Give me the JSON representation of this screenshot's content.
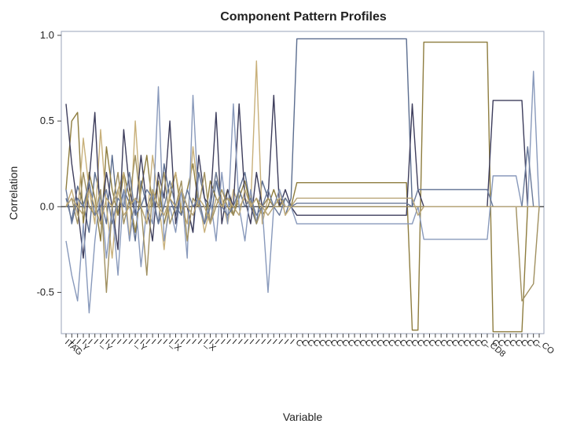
{
  "chart_data": {
    "type": "line",
    "title": "Component Pattern Profiles",
    "xlabel": "Variable",
    "ylabel": "Correlation",
    "ylim": [
      -0.75,
      1.0
    ],
    "yticks": [
      1.0,
      0.5,
      0.0,
      -0.5
    ],
    "ytick_labels": [
      "1.0",
      "0.5",
      "0.0",
      "-0.5"
    ],
    "grid": false,
    "legend": "none",
    "n_variables": 83,
    "x_tick_labels": [
      "ITAG",
      "I",
      "I_Y",
      "I",
      "I",
      "I",
      "I_Y",
      "I",
      "I",
      "I",
      "I",
      "I",
      "I_Y",
      "I",
      "I",
      "I",
      "I",
      "I",
      "I_X",
      "I",
      "I",
      "I",
      "I",
      "I",
      "I_X",
      "I",
      "I",
      "I",
      "I",
      "I",
      "I",
      "I",
      "I",
      "I",
      "I",
      "I",
      "I",
      "I",
      "I",
      "I",
      "C",
      "C",
      "C",
      "C",
      "C",
      "C",
      "C",
      "C",
      "C",
      "C",
      "C",
      "C",
      "C",
      "C",
      "C",
      "C",
      "C",
      "C",
      "C",
      "C",
      "C",
      "C",
      "C",
      "C",
      "C",
      "C",
      "C",
      "C",
      "C",
      "C",
      "C",
      "C",
      "C",
      "_CD8",
      "C",
      "C",
      "C",
      "C",
      "C",
      "C",
      "C",
      "C",
      "_CO"
    ],
    "series": [
      {
        "color": "#5b6d8f",
        "values": [
          0.05,
          -0.08,
          0.12,
          0.02,
          -0.15,
          0.2,
          0.05,
          -0.1,
          0.3,
          -0.05,
          0.1,
          0.02,
          -0.2,
          0.15,
          0.0,
          0.08,
          -0.1,
          0.25,
          0.05,
          -0.05,
          0.1,
          0.0,
          -0.15,
          0.2,
          0.05,
          -0.1,
          0.15,
          0.0,
          0.05,
          -0.05,
          0.1,
          0.2,
          0.0,
          -0.1,
          0.15,
          0.05,
          0.0,
          0.1,
          -0.05,
          0.05,
          0.98,
          0.98,
          0.98,
          0.98,
          0.98,
          0.98,
          0.98,
          0.98,
          0.98,
          0.98,
          0.98,
          0.98,
          0.98,
          0.98,
          0.98,
          0.98,
          0.98,
          0.98,
          0.98,
          0.98,
          0.0,
          0.0,
          0.0,
          0.0,
          0.0,
          0.0,
          0.0,
          0.0,
          0.0,
          0.0,
          0.0,
          0.0,
          0.0,
          0.0,
          0.0,
          0.0,
          0.0,
          0.0,
          0.0,
          0.0,
          0.0,
          0.0,
          0.0
        ]
      },
      {
        "color": "#8e7d3f",
        "values": [
          0.1,
          0.5,
          0.55,
          -0.1,
          0.2,
          0.05,
          -0.2,
          0.35,
          0.1,
          -0.05,
          0.2,
          0.05,
          -0.15,
          0.1,
          0.3,
          0.0,
          0.15,
          -0.1,
          0.05,
          0.2,
          -0.05,
          0.1,
          0.25,
          0.0,
          -0.1,
          0.15,
          0.05,
          0.0,
          0.1,
          -0.05,
          0.05,
          0.15,
          0.0,
          0.05,
          -0.05,
          0.0,
          0.1,
          0.0,
          0.05,
          0.0,
          0.14,
          0.14,
          0.14,
          0.14,
          0.14,
          0.14,
          0.14,
          0.14,
          0.14,
          0.14,
          0.14,
          0.14,
          0.14,
          0.14,
          0.14,
          0.14,
          0.14,
          0.14,
          0.14,
          0.14,
          -0.72,
          -0.72,
          0.96,
          0.96,
          0.96,
          0.96,
          0.96,
          0.96,
          0.96,
          0.96,
          0.96,
          0.96,
          0.96,
          0.96,
          -0.73,
          -0.73,
          -0.73,
          -0.73,
          -0.73,
          -0.73,
          0.0,
          0.0,
          0.0
        ]
      },
      {
        "color": "#c8b07a",
        "values": [
          0.0,
          0.1,
          -0.05,
          0.4,
          0.1,
          -0.1,
          0.45,
          0.0,
          -0.3,
          0.1,
          0.2,
          -0.2,
          0.5,
          0.0,
          -0.1,
          0.3,
          0.05,
          -0.25,
          0.1,
          0.2,
          0.0,
          -0.1,
          0.35,
          0.05,
          -0.15,
          0.0,
          0.2,
          0.05,
          -0.1,
          0.1,
          0.0,
          0.05,
          0.0,
          0.85,
          -0.1,
          0.05,
          0.0,
          0.1,
          -0.05,
          0.0,
          0.0,
          0.0,
          0.0,
          0.0,
          0.0,
          0.0,
          0.0,
          0.0,
          0.0,
          0.0,
          0.0,
          0.0,
          0.0,
          0.0,
          0.0,
          0.0,
          0.0,
          0.0,
          0.0,
          0.0,
          0.0,
          0.0,
          0.0,
          0.0,
          0.0,
          0.0,
          0.0,
          0.0,
          0.0,
          0.0,
          0.0,
          0.0,
          0.0,
          0.0,
          0.0,
          0.0,
          0.0,
          0.0,
          0.0,
          0.0,
          0.0,
          0.0,
          0.0
        ]
      },
      {
        "color": "#3d3d5c",
        "values": [
          0.6,
          0.25,
          0.0,
          -0.3,
          0.15,
          0.55,
          -0.1,
          0.2,
          0.0,
          -0.25,
          0.45,
          0.1,
          -0.05,
          0.3,
          0.0,
          -0.2,
          0.2,
          0.05,
          0.5,
          -0.1,
          0.1,
          0.0,
          -0.15,
          0.3,
          0.05,
          0.0,
          0.55,
          -0.1,
          0.1,
          0.0,
          0.6,
          0.05,
          -0.1,
          0.2,
          0.0,
          0.05,
          0.65,
          0.0,
          0.1,
          0.0,
          -0.05,
          -0.05,
          -0.05,
          -0.05,
          -0.05,
          -0.05,
          -0.05,
          -0.05,
          -0.05,
          -0.05,
          -0.05,
          -0.05,
          -0.05,
          -0.05,
          -0.05,
          -0.05,
          -0.05,
          -0.05,
          -0.05,
          -0.05,
          0.6,
          0.1,
          0.0,
          0.0,
          0.0,
          0.0,
          0.0,
          0.0,
          0.0,
          0.0,
          0.0,
          0.0,
          0.0,
          0.0,
          0.62,
          0.62,
          0.62,
          0.62,
          0.62,
          0.62,
          0.0,
          0.0,
          0.0
        ]
      },
      {
        "color": "#8899bb",
        "values": [
          -0.2,
          -0.4,
          -0.55,
          -0.1,
          -0.62,
          -0.2,
          0.1,
          -0.3,
          0.0,
          -0.4,
          0.1,
          -0.2,
          0.05,
          -0.35,
          0.0,
          -0.1,
          0.7,
          -0.2,
          0.0,
          -0.15,
          0.1,
          -0.3,
          0.65,
          0.0,
          -0.1,
          0.05,
          -0.2,
          0.2,
          -0.1,
          0.6,
          0.0,
          -0.2,
          0.1,
          -0.1,
          0.0,
          -0.5,
          0.0,
          0.1,
          0.0,
          0.0,
          -0.1,
          -0.1,
          -0.1,
          -0.1,
          -0.1,
          -0.1,
          -0.1,
          -0.1,
          -0.1,
          -0.1,
          -0.1,
          -0.1,
          -0.1,
          -0.1,
          -0.1,
          -0.1,
          -0.1,
          -0.1,
          -0.1,
          -0.1,
          -0.1,
          0.0,
          -0.19,
          -0.19,
          -0.19,
          -0.19,
          -0.19,
          -0.19,
          -0.19,
          -0.19,
          -0.19,
          -0.19,
          -0.19,
          -0.19,
          0.18,
          0.18,
          0.18,
          0.18,
          0.18,
          0.0,
          0.0,
          0.79,
          0.0
        ]
      },
      {
        "color": "#a09060",
        "values": [
          0.0,
          0.05,
          -0.1,
          0.2,
          0.0,
          -0.05,
          0.1,
          -0.5,
          0.0,
          0.2,
          -0.1,
          0.05,
          0.3,
          0.0,
          -0.4,
          0.1,
          0.0,
          0.2,
          -0.1,
          0.0,
          0.15,
          -0.2,
          0.05,
          0.0,
          0.2,
          -0.1,
          0.0,
          0.1,
          0.0,
          -0.05,
          0.1,
          0.0,
          0.05,
          -0.1,
          0.0,
          0.05,
          0.0,
          0.0,
          0.05,
          0.0,
          0.0,
          0.0,
          0.0,
          0.0,
          0.0,
          0.0,
          0.0,
          0.0,
          0.0,
          0.0,
          0.0,
          0.0,
          0.0,
          0.0,
          0.0,
          0.0,
          0.0,
          0.0,
          0.0,
          0.0,
          0.0,
          0.0,
          0.0,
          0.0,
          0.0,
          0.0,
          0.0,
          0.0,
          0.0,
          0.0,
          0.0,
          0.0,
          0.0,
          0.0,
          0.0,
          0.0,
          0.0,
          0.0,
          0.0,
          -0.55,
          -0.5,
          -0.45,
          0.0
        ]
      },
      {
        "color": "#6a7a9a",
        "values": [
          0.1,
          -0.1,
          0.05,
          0.0,
          0.15,
          -0.05,
          0.0,
          0.1,
          -0.1,
          0.05,
          0.0,
          0.2,
          -0.05,
          0.0,
          0.1,
          0.05,
          -0.1,
          0.0,
          0.15,
          0.0,
          -0.05,
          0.1,
          0.0,
          0.05,
          -0.1,
          0.0,
          0.2,
          0.0,
          -0.05,
          0.0,
          0.1,
          0.0,
          0.05,
          -0.05,
          0.0,
          0.1,
          0.0,
          -0.05,
          0.05,
          0.0,
          0.02,
          0.02,
          0.02,
          0.02,
          0.02,
          0.02,
          0.02,
          0.02,
          0.02,
          0.02,
          0.02,
          0.02,
          0.02,
          0.02,
          0.02,
          0.02,
          0.02,
          0.02,
          0.02,
          0.02,
          0.0,
          0.1,
          0.1,
          0.1,
          0.1,
          0.1,
          0.1,
          0.1,
          0.1,
          0.1,
          0.1,
          0.1,
          0.1,
          0.1,
          0.0,
          0.0,
          0.0,
          0.0,
          0.0,
          0.0,
          0.35,
          0.0,
          0.0
        ]
      },
      {
        "color": "#b8a577",
        "values": [
          0.0,
          0.05,
          0.0,
          -0.05,
          0.1,
          0.0,
          -0.1,
          0.05,
          0.0,
          0.1,
          -0.05,
          0.0,
          0.05,
          0.0,
          -0.1,
          0.1,
          0.0,
          -0.05,
          0.05,
          0.0,
          0.1,
          0.0,
          -0.05,
          0.05,
          0.0,
          -0.1,
          0.05,
          0.0,
          0.05,
          0.0,
          -0.05,
          0.1,
          0.0,
          0.05,
          0.0,
          -0.05,
          0.0,
          0.05,
          0.0,
          0.0,
          0.05,
          0.05,
          0.05,
          0.05,
          0.05,
          0.05,
          0.05,
          0.05,
          0.05,
          0.05,
          0.05,
          0.05,
          0.05,
          0.05,
          0.05,
          0.05,
          0.05,
          0.05,
          0.05,
          0.05,
          0.05,
          -0.05,
          0.0,
          0.0,
          0.0,
          0.0,
          0.0,
          0.0,
          0.0,
          0.0,
          0.0,
          0.0,
          0.0,
          0.0,
          0.0,
          0.0,
          0.0,
          0.0,
          0.0,
          0.0,
          0.0,
          0.0,
          0.0
        ]
      }
    ]
  }
}
